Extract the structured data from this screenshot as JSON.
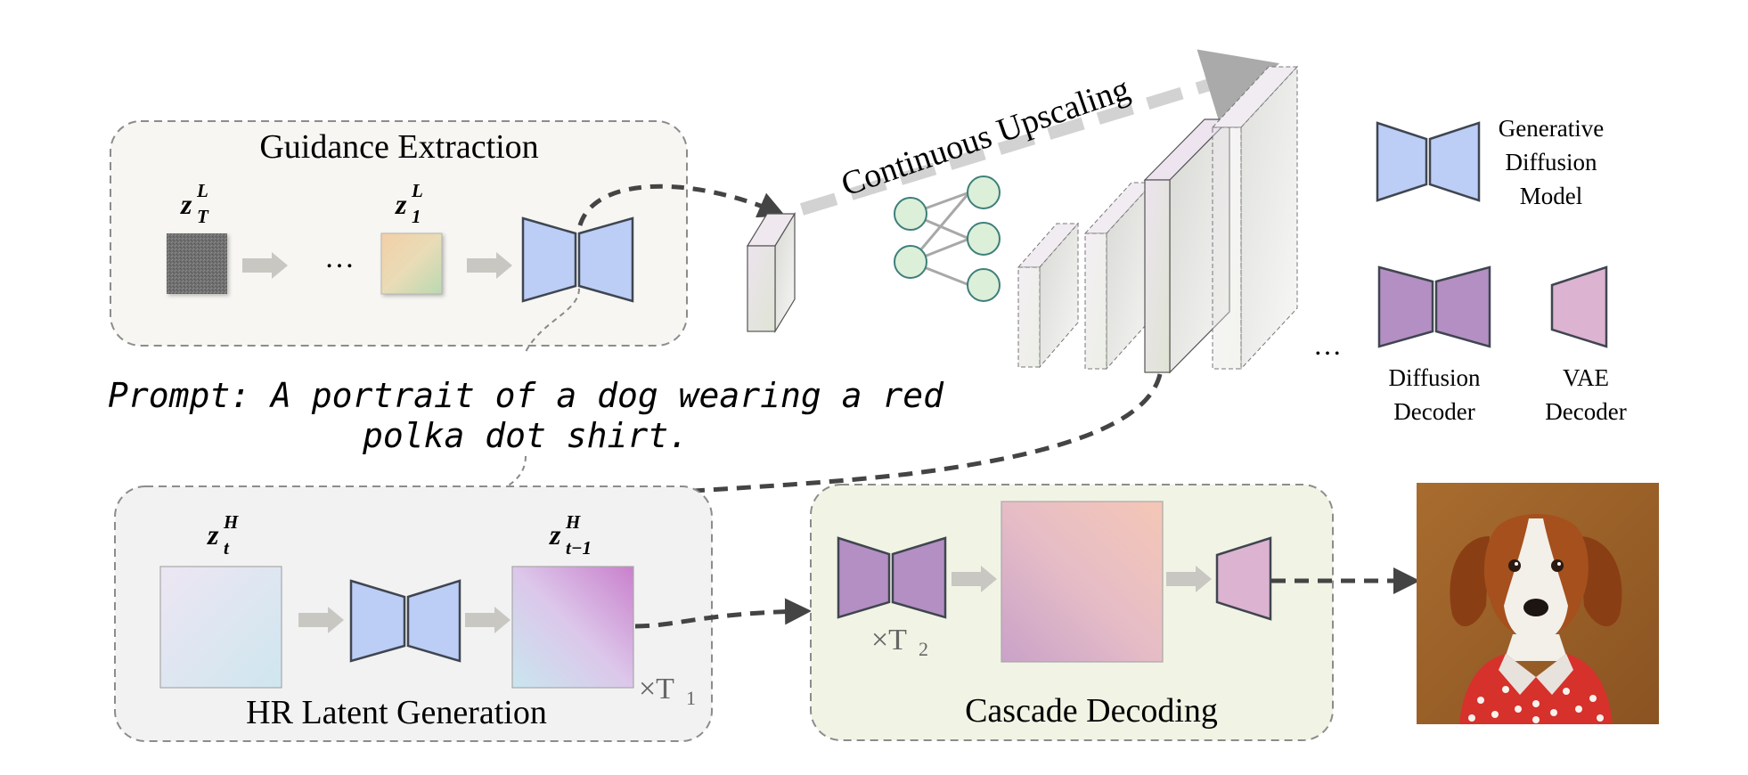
{
  "guidance": {
    "title": "Guidance Extraction",
    "latent_start": {
      "base": "z",
      "sub": "T",
      "sup": "L"
    },
    "latent_end": {
      "base": "z",
      "sub": "1",
      "sup": "L"
    },
    "ellipsis": "…"
  },
  "upscaling": {
    "label": "Continuous Upscaling",
    "ellipsis": "…"
  },
  "prompt": {
    "line1": "Prompt: A portrait of a dog wearing a red",
    "line2": "polka dot shirt."
  },
  "hr": {
    "title": "HR Latent Generation",
    "latent_in": {
      "base": "z",
      "sub": "t",
      "sup": "H"
    },
    "latent_out": {
      "base": "z",
      "sub": "t−1",
      "sup": "H"
    },
    "repeat": {
      "times": "×T",
      "sub": "1"
    }
  },
  "cascade": {
    "title": "Cascade Decoding",
    "repeat": {
      "times": "×T",
      "sub": "2"
    }
  },
  "legend": {
    "generative": [
      "Generative",
      "Diffusion",
      "Model"
    ],
    "diffusion_decoder": [
      "Diffusion",
      "Decoder"
    ],
    "vae_decoder": [
      "VAE",
      "Decoder"
    ]
  },
  "colors": {
    "generative_model": "#bccdf6",
    "diffusion_decoder": "#b48fc3",
    "vae_decoder": "#dcb3d0",
    "guidance_panel": "#f7f6f2",
    "hr_panel": "#f2f2f2",
    "cascade_panel": "#f1f4e4",
    "mlp_node": "#dcefd8",
    "arrow_gray": "#c9c7c2"
  }
}
